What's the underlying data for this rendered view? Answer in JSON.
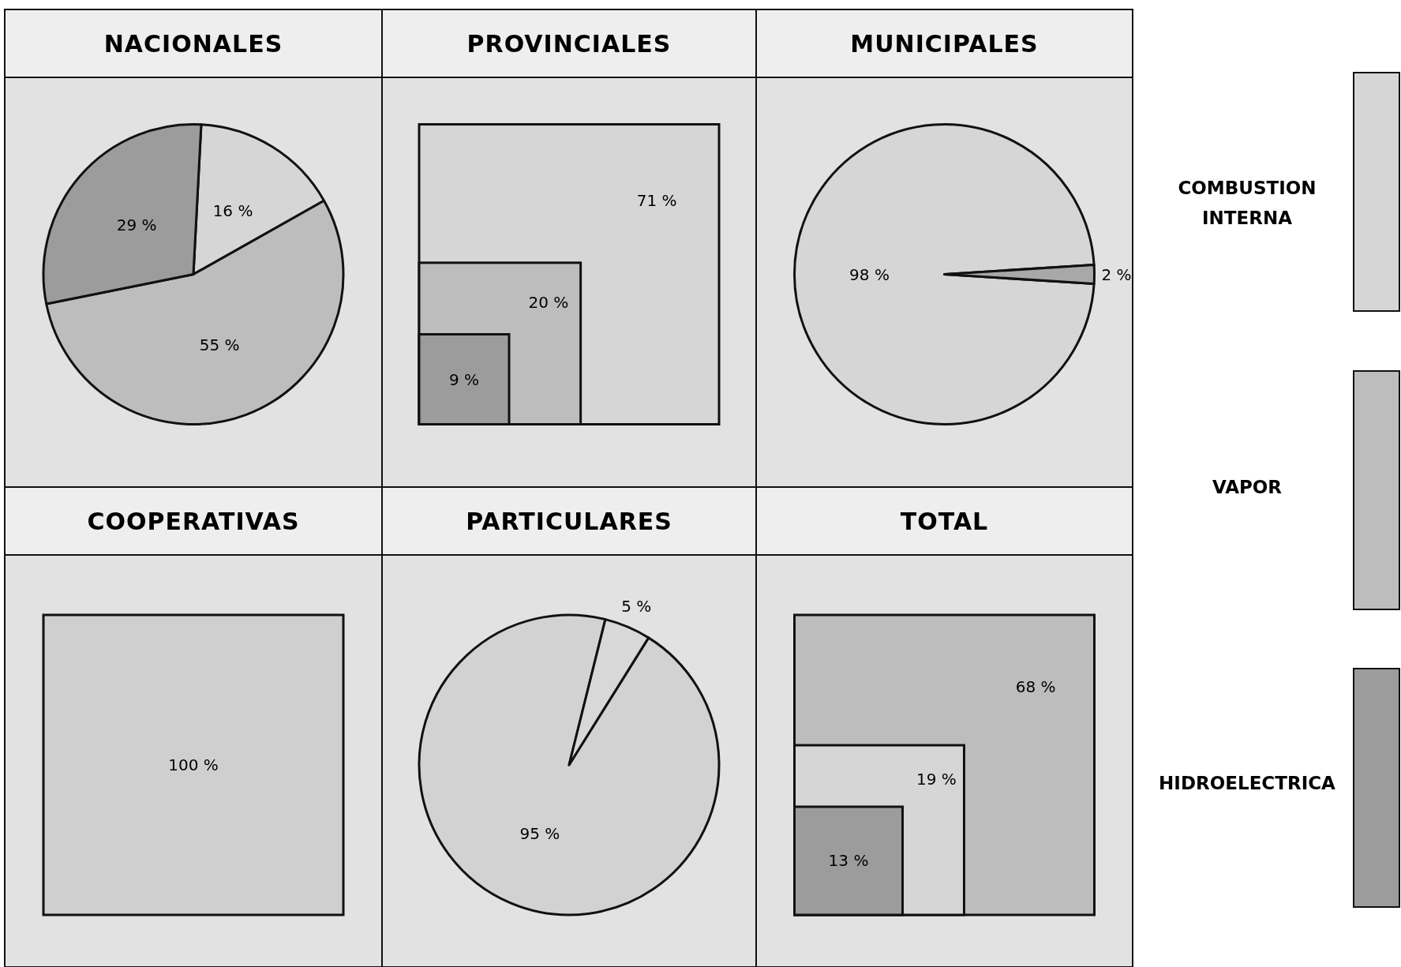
{
  "chart_data": [
    {
      "type": "pie",
      "title": "NACIONALES",
      "categories": [
        null,
        null,
        null
      ],
      "values": [
        16,
        55,
        29
      ],
      "value_labels": [
        "16 %",
        "55 %",
        "29 %"
      ],
      "colors": [
        "#d6d6d6",
        "#bdbdbd",
        "#9c9c9c"
      ]
    },
    {
      "type": "other",
      "title": "PROVINCIALES",
      "categories": [
        null,
        null,
        null
      ],
      "values": [
        71,
        20,
        9
      ],
      "value_labels": [
        "71 %",
        "20 %",
        "9 %"
      ],
      "colors": [
        "#d6d6d6",
        "#bdbdbd",
        "#9c9c9c"
      ]
    },
    {
      "type": "pie",
      "title": "MUNICIPALES",
      "categories": [
        null,
        null
      ],
      "values": [
        98,
        2
      ],
      "value_labels": [
        "98 %",
        "2 %"
      ],
      "colors": [
        "#d6d6d6",
        "#a8a8a8"
      ]
    },
    {
      "type": "other",
      "title": "COOPERATIVAS",
      "categories": [
        null
      ],
      "values": [
        100
      ],
      "value_labels": [
        "100 %"
      ],
      "colors": [
        "#cfcfcf"
      ]
    },
    {
      "type": "pie",
      "title": "PARTICULARES",
      "categories": [
        null,
        null
      ],
      "values": [
        95,
        5
      ],
      "value_labels": [
        "95 %",
        "5 %"
      ],
      "colors": [
        "#d2d2d2",
        "#d8d8d8"
      ]
    },
    {
      "type": "other",
      "title": "TOTAL",
      "categories": [
        null,
        null,
        null
      ],
      "values": [
        68,
        19,
        13
      ],
      "value_labels": [
        "68 %",
        "19 %",
        "13 %"
      ],
      "colors": [
        "#bdbdbd",
        "#d6d6d6",
        "#9c9c9c"
      ]
    },
    {
      "type": "other",
      "categories": [
        "COMBUSTION INTERNA",
        "VAPOR",
        "HIDROELECTRICA"
      ],
      "colors": [
        "#d6d6d6",
        "#bdbdbd",
        "#9c9c9c"
      ]
    }
  ]
}
